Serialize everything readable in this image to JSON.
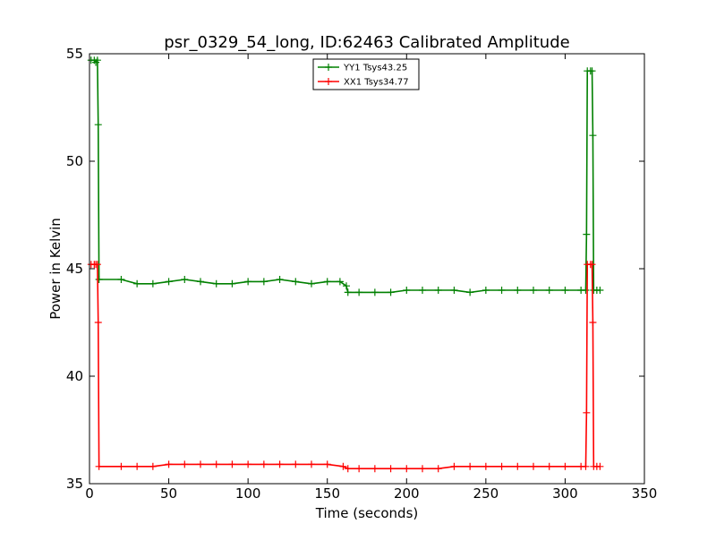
{
  "chart_data": {
    "type": "line",
    "title": "psr_0329_54_long, ID:62463 Calibrated Amplitude",
    "xlabel": "Time (seconds)",
    "ylabel": "Power in Kelvin",
    "xlim": [
      0,
      350
    ],
    "ylim": [
      35,
      55
    ],
    "xticks": [
      "0",
      "50",
      "100",
      "150",
      "200",
      "250",
      "300",
      "350"
    ],
    "yticks": [
      "35",
      "40",
      "45",
      "50",
      "55"
    ],
    "legend_position": "top-center",
    "grid": false,
    "marker": "+",
    "series": [
      {
        "name": "YY1 Tsys43.25",
        "color": "#008000",
        "points": [
          [
            1,
            54.7
          ],
          [
            3,
            54.7
          ],
          [
            4,
            54.6
          ],
          [
            5,
            54.7
          ],
          [
            5.5,
            51.7
          ],
          [
            6,
            44.5
          ],
          [
            20,
            44.5
          ],
          [
            30,
            44.3
          ],
          [
            40,
            44.3
          ],
          [
            50,
            44.4
          ],
          [
            60,
            44.5
          ],
          [
            70,
            44.4
          ],
          [
            80,
            44.3
          ],
          [
            90,
            44.3
          ],
          [
            100,
            44.4
          ],
          [
            110,
            44.4
          ],
          [
            120,
            44.5
          ],
          [
            130,
            44.4
          ],
          [
            140,
            44.3
          ],
          [
            150,
            44.4
          ],
          [
            158,
            44.4
          ],
          [
            162,
            44.2
          ],
          [
            163,
            43.9
          ],
          [
            170,
            43.9
          ],
          [
            180,
            43.9
          ],
          [
            190,
            43.9
          ],
          [
            200,
            44.0
          ],
          [
            210,
            44.0
          ],
          [
            220,
            44.0
          ],
          [
            230,
            44.0
          ],
          [
            240,
            43.9
          ],
          [
            250,
            44.0
          ],
          [
            260,
            44.0
          ],
          [
            270,
            44.0
          ],
          [
            280,
            44.0
          ],
          [
            290,
            44.0
          ],
          [
            300,
            44.0
          ],
          [
            310,
            44.0
          ],
          [
            313,
            44.0
          ],
          [
            313.5,
            46.6
          ],
          [
            314,
            54.2
          ],
          [
            316,
            54.2
          ],
          [
            317,
            54.2
          ],
          [
            317.5,
            51.2
          ],
          [
            318,
            44.0
          ],
          [
            320,
            44.0
          ],
          [
            322,
            44.0
          ]
        ]
      },
      {
        "name": "XX1 Tsys34.77",
        "color": "#ff0000",
        "points": [
          [
            1,
            45.2
          ],
          [
            3,
            45.2
          ],
          [
            4,
            45.2
          ],
          [
            5,
            45.2
          ],
          [
            5.5,
            42.5
          ],
          [
            6,
            35.8
          ],
          [
            20,
            35.8
          ],
          [
            30,
            35.8
          ],
          [
            40,
            35.8
          ],
          [
            50,
            35.9
          ],
          [
            60,
            35.9
          ],
          [
            70,
            35.9
          ],
          [
            80,
            35.9
          ],
          [
            90,
            35.9
          ],
          [
            100,
            35.9
          ],
          [
            110,
            35.9
          ],
          [
            120,
            35.9
          ],
          [
            130,
            35.9
          ],
          [
            140,
            35.9
          ],
          [
            150,
            35.9
          ],
          [
            160,
            35.8
          ],
          [
            163,
            35.7
          ],
          [
            170,
            35.7
          ],
          [
            180,
            35.7
          ],
          [
            190,
            35.7
          ],
          [
            200,
            35.7
          ],
          [
            210,
            35.7
          ],
          [
            220,
            35.7
          ],
          [
            230,
            35.8
          ],
          [
            240,
            35.8
          ],
          [
            250,
            35.8
          ],
          [
            260,
            35.8
          ],
          [
            270,
            35.8
          ],
          [
            280,
            35.8
          ],
          [
            290,
            35.8
          ],
          [
            300,
            35.8
          ],
          [
            310,
            35.8
          ],
          [
            313,
            35.8
          ],
          [
            313.5,
            38.3
          ],
          [
            314,
            45.2
          ],
          [
            316,
            45.2
          ],
          [
            317,
            45.2
          ],
          [
            317.5,
            42.5
          ],
          [
            318,
            35.8
          ],
          [
            320,
            35.8
          ],
          [
            322,
            35.8
          ]
        ]
      }
    ]
  }
}
